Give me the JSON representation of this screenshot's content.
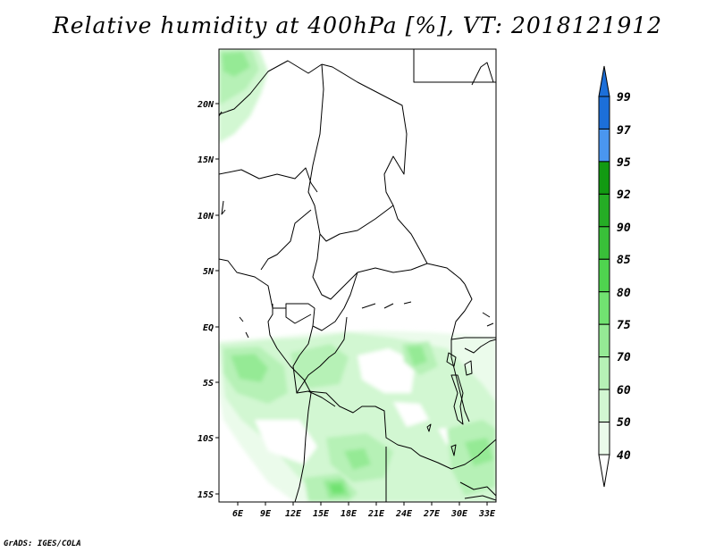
{
  "title": "Relative humidity at 400hPa [%], VT: 2018121912",
  "credit": "GrADS: IGES/COLA",
  "map": {
    "lon_ticks": [
      "6E",
      "9E",
      "12E",
      "15E",
      "18E",
      "21E",
      "24E",
      "27E",
      "30E",
      "33E"
    ],
    "lat_ticks": [
      "20N",
      "15N",
      "10N",
      "5N",
      "EQ",
      "5S",
      "10S",
      "15S"
    ]
  },
  "colorbar": {
    "labels": [
      "99",
      "97",
      "95",
      "92",
      "90",
      "85",
      "80",
      "75",
      "70",
      "60",
      "50",
      "40"
    ],
    "colors": [
      "#1c6fd9",
      "#4a96ef",
      "#129a12",
      "#25ad25",
      "#39c039",
      "#4fd44f",
      "#71e271",
      "#95ea95",
      "#b6f1b6",
      "#d2f7d2",
      "#ebfbeb"
    ]
  }
}
